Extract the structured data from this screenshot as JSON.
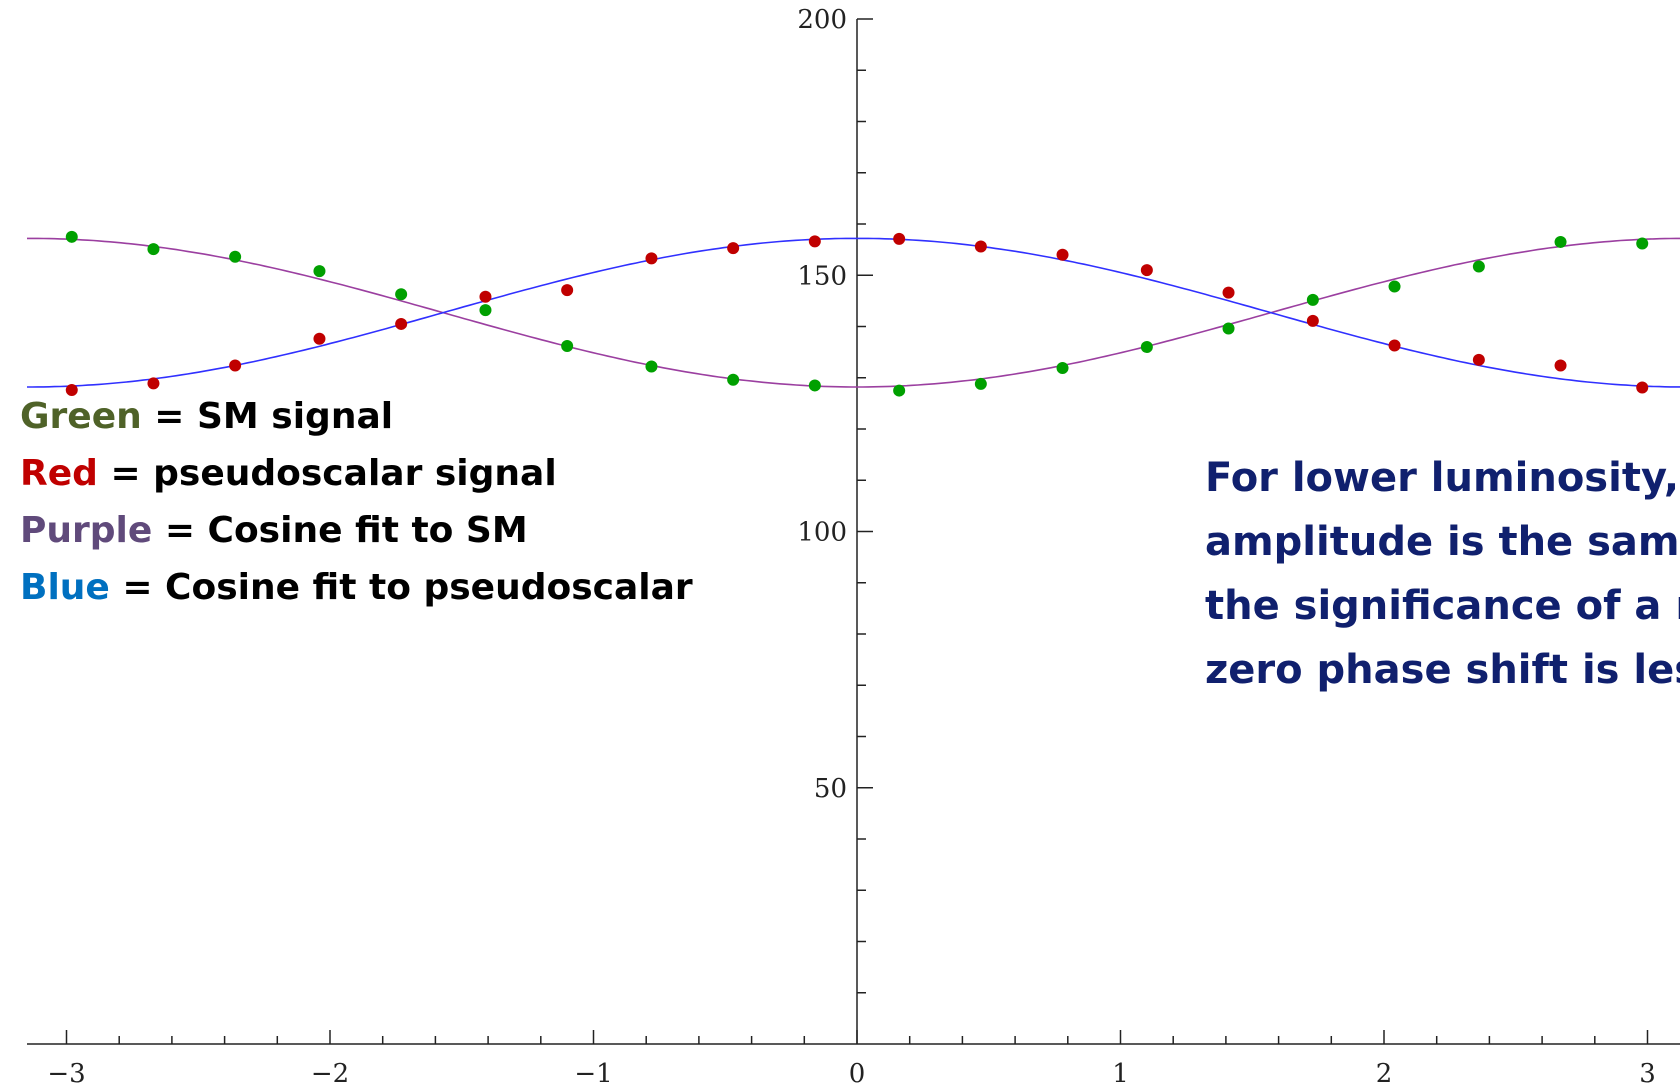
{
  "legend": [
    {
      "key": "Green",
      "color": "#4f6228",
      "text": " = SM signal"
    },
    {
      "key": "Red",
      "color": "#c00000",
      "text": " = pseudoscalar signal"
    },
    {
      "key": "Purple",
      "color": "#604a7b",
      "text": " = Cosine fit to SM"
    },
    {
      "key": "Blue",
      "color": "#0070c0",
      "text": " = Cosine fit to pseudoscalar"
    }
  ],
  "note_lines": [
    "For lower luminosity,",
    "amplitude is the same",
    "the significance of a n",
    "zero phase shift is less"
  ],
  "chart_data": {
    "type": "scatter",
    "title": "",
    "xlabel": "",
    "ylabel": "",
    "xlim": [
      -3.15,
      3.15
    ],
    "ylim": [
      0,
      200
    ],
    "x_ticks": [
      -3,
      -2,
      -1,
      0,
      1,
      2,
      3
    ],
    "x_tick_labels": [
      "−3",
      "−2",
      "−1",
      "0",
      "1",
      "2",
      "3"
    ],
    "y_ticks": [
      50,
      100,
      150,
      200
    ],
    "y_tick_labels": [
      "50",
      "100",
      "150",
      "200"
    ],
    "grid": false,
    "series": [
      {
        "color": "#00a000",
        "points": [
          [
            -2.98,
            157.5
          ],
          [
            -2.67,
            155.1
          ],
          [
            -2.36,
            153.6
          ],
          [
            -2.04,
            150.8
          ],
          [
            -1.73,
            146.3
          ],
          [
            -1.41,
            143.2
          ],
          [
            -1.1,
            136.2
          ],
          [
            -0.78,
            132.2
          ],
          [
            -0.47,
            129.6
          ],
          [
            -0.16,
            128.5
          ],
          [
            0.16,
            127.5
          ],
          [
            0.47,
            128.8
          ],
          [
            0.78,
            131.9
          ],
          [
            1.1,
            136.0
          ],
          [
            1.41,
            139.6
          ],
          [
            1.73,
            145.2
          ],
          [
            2.04,
            147.8
          ],
          [
            2.36,
            151.7
          ],
          [
            2.67,
            156.5
          ],
          [
            2.98,
            156.2
          ]
        ]
      },
      {
        "color": "#c00000",
        "points": [
          [
            -2.98,
            127.6
          ],
          [
            -2.67,
            128.9
          ],
          [
            -2.36,
            132.4
          ],
          [
            -2.04,
            137.6
          ],
          [
            -1.73,
            140.5
          ],
          [
            -1.41,
            145.8
          ],
          [
            -1.1,
            147.1
          ],
          [
            -0.78,
            153.3
          ],
          [
            -0.47,
            155.3
          ],
          [
            -0.16,
            156.6
          ],
          [
            0.16,
            157.1
          ],
          [
            0.47,
            155.6
          ],
          [
            0.78,
            154.0
          ],
          [
            1.1,
            151.0
          ],
          [
            1.41,
            146.6
          ],
          [
            1.73,
            141.1
          ],
          [
            2.04,
            136.3
          ],
          [
            2.36,
            133.5
          ],
          [
            2.67,
            132.4
          ],
          [
            2.98,
            128.1
          ]
        ]
      },
      {
        "color": "#9b3fa0",
        "fit": {
          "offset": 142.7,
          "amplitude": -14.5,
          "phase": 0
        }
      },
      {
        "color": "#3030ff",
        "fit": {
          "offset": 142.7,
          "amplitude": 14.5,
          "phase": 0
        }
      }
    ]
  }
}
